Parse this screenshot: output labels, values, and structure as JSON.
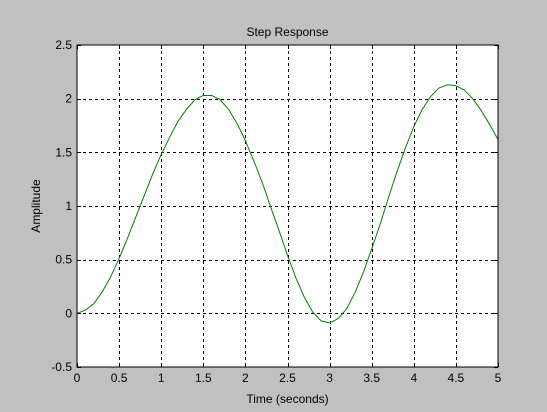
{
  "chart_data": {
    "type": "line",
    "title": "Step Response",
    "xlabel": "Time (seconds)",
    "ylabel": "Amplitude",
    "xlim": [
      0,
      5
    ],
    "ylim": [
      -0.5,
      2.5
    ],
    "xticks": [
      "0",
      "0.5",
      "1",
      "1.5",
      "2",
      "2.5",
      "3",
      "3.5",
      "4",
      "4.5",
      "5"
    ],
    "yticks": [
      "-0.5",
      "0",
      "0.5",
      "1",
      "1.5",
      "2",
      "2.5"
    ],
    "grid": true,
    "series": [
      {
        "color": "#008000",
        "x": [
          0,
          0.1,
          0.2,
          0.3,
          0.4,
          0.5,
          0.6,
          0.7,
          0.8,
          0.9,
          1.0,
          1.1,
          1.2,
          1.3,
          1.4,
          1.5,
          1.6,
          1.7,
          1.8,
          1.9,
          2.0,
          2.1,
          2.2,
          2.3,
          2.4,
          2.5,
          2.6,
          2.7,
          2.8,
          2.9,
          3.0,
          3.1,
          3.2,
          3.3,
          3.4,
          3.5,
          3.6,
          3.7,
          3.8,
          3.9,
          4.0,
          4.1,
          4.2,
          4.3,
          4.4,
          4.5,
          4.6,
          4.7,
          4.8,
          4.9,
          5.0
        ],
        "y": [
          0.0,
          0.03,
          0.09,
          0.2,
          0.34,
          0.51,
          0.7,
          0.9,
          1.1,
          1.3,
          1.48,
          1.64,
          1.79,
          1.9,
          1.99,
          2.03,
          2.03,
          1.99,
          1.9,
          1.77,
          1.61,
          1.42,
          1.22,
          0.99,
          0.77,
          0.54,
          0.33,
          0.15,
          0.01,
          -0.07,
          -0.09,
          -0.05,
          0.04,
          0.19,
          0.38,
          0.6,
          0.83,
          1.08,
          1.32,
          1.54,
          1.74,
          1.9,
          2.02,
          2.1,
          2.13,
          2.12,
          2.08,
          2.0,
          1.89,
          1.76,
          1.62
        ]
      }
    ]
  }
}
